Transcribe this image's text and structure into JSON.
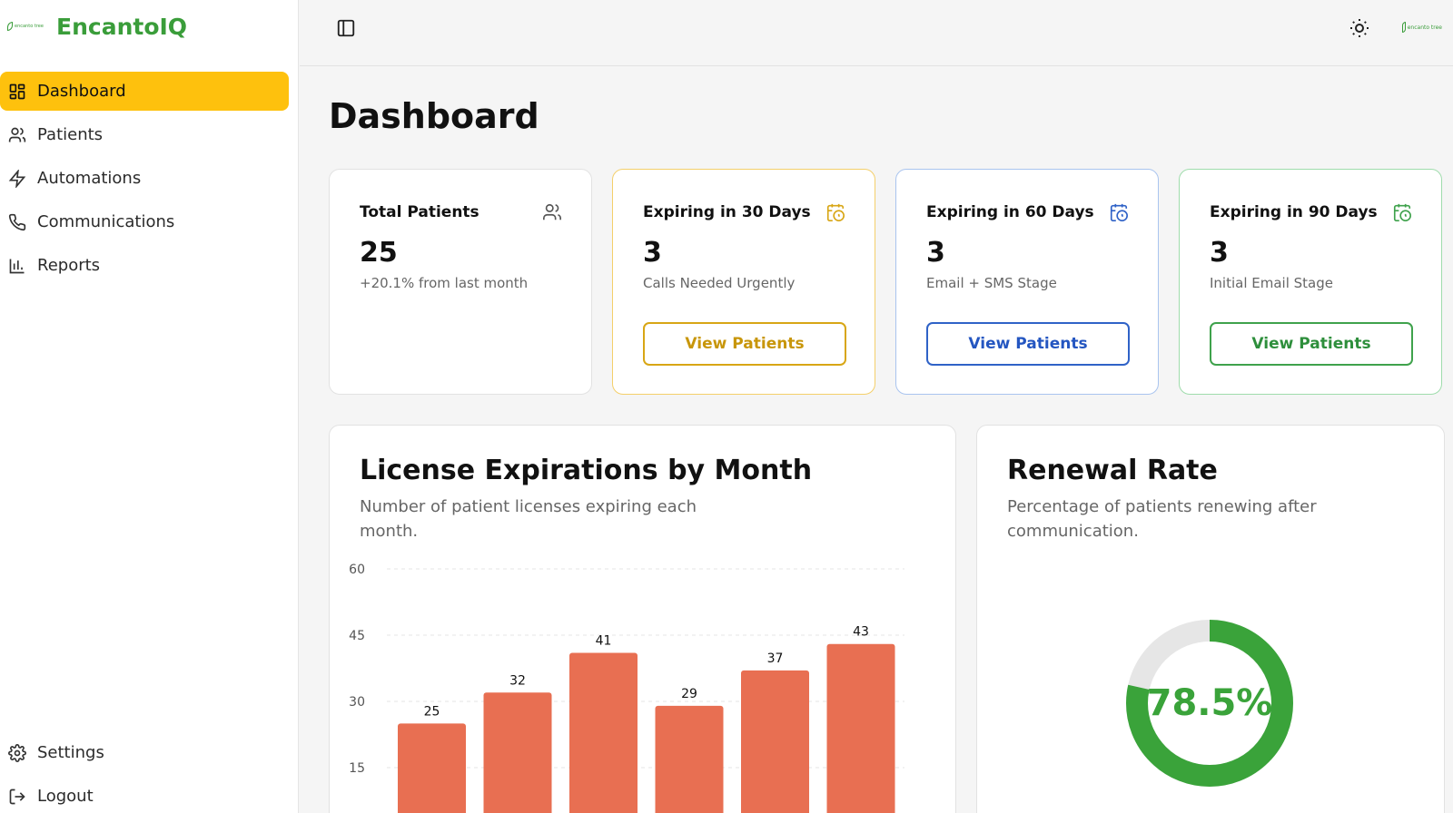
{
  "brand": {
    "logo_text": "encanto tree",
    "name": "EncantoIQ"
  },
  "sidebar": {
    "items": [
      {
        "label": "Dashboard",
        "icon": "dashboard-icon",
        "active": true
      },
      {
        "label": "Patients",
        "icon": "users-icon"
      },
      {
        "label": "Automations",
        "icon": "zap-icon"
      },
      {
        "label": "Communications",
        "icon": "phone-icon"
      },
      {
        "label": "Reports",
        "icon": "bar-chart-icon"
      }
    ],
    "bottom": [
      {
        "label": "Settings",
        "icon": "gear-icon"
      },
      {
        "label": "Logout",
        "icon": "logout-icon"
      }
    ],
    "active_color": "#FEC10D"
  },
  "topbar": {
    "toggle_icon": "sidebar-toggle-icon",
    "theme_icon": "sun-icon",
    "avatar_text": "encanto tree"
  },
  "page": {
    "title": "Dashboard"
  },
  "cards": [
    {
      "title": "Total Patients",
      "value": "25",
      "sub": "+20.1% from last month",
      "icon": "users-icon"
    },
    {
      "title": "Expiring in 30 Days",
      "value": "3",
      "sub": "Calls Needed Urgently",
      "button": "View Patients",
      "icon": "calendar-clock-icon",
      "color": "#D8A615"
    },
    {
      "title": "Expiring in 60 Days",
      "value": "3",
      "sub": "Email + SMS Stage",
      "button": "View Patients",
      "icon": "calendar-clock-icon",
      "color": "#2F62C7"
    },
    {
      "title": "Expiring in 90 Days",
      "value": "3",
      "sub": "Initial Email Stage",
      "button": "View Patients",
      "icon": "calendar-clock-icon",
      "color": "#3FA24C"
    }
  ],
  "license_panel": {
    "title": "License Expirations by Month",
    "subtitle": "Number of patient licenses expiring each month."
  },
  "renewal_panel": {
    "title": "Renewal Rate",
    "subtitle": "Percentage of patients renewing after communication.",
    "value_label": "78.5%"
  },
  "chart_data": [
    {
      "type": "bar",
      "title": "License Expirations by Month",
      "subtitle": "Number of patient licenses expiring each month.",
      "categories": [
        "",
        "",
        "",
        "",
        "",
        ""
      ],
      "values": [
        25,
        32,
        41,
        29,
        37,
        43
      ],
      "ylim": [
        0,
        60
      ],
      "yticks": [
        15,
        30,
        45,
        60
      ],
      "grid": true,
      "bar_color": "#E86F52"
    },
    {
      "type": "pie",
      "title": "Renewal Rate",
      "subtitle": "Percentage of patients renewing after communication.",
      "values": [
        78.5,
        21.5
      ],
      "center_label": "78.5%",
      "colors": [
        "#3AA33A",
        "#E6E6E6"
      ]
    }
  ]
}
